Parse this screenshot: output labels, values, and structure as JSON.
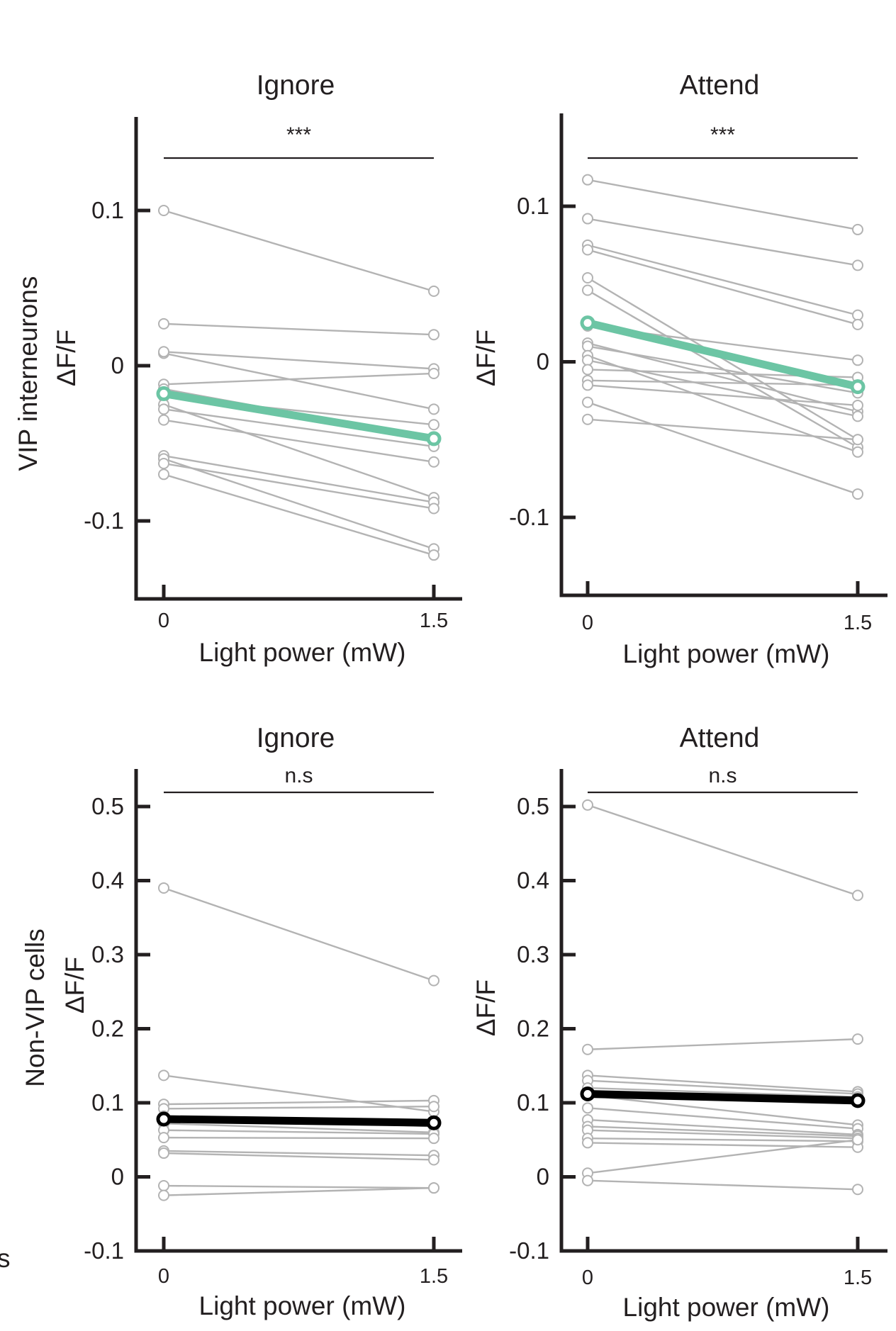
{
  "figure": {
    "row_labels": [
      {
        "text": "VIP interneurons",
        "color": "#6cc5a4"
      },
      {
        "text": "Non-VIP cells",
        "color": "#231f20"
      }
    ],
    "edge_fragment": "s"
  },
  "colors": {
    "individual": "#b3b3b3",
    "axis": "#231f20",
    "vip_mean": "#6cc5a4",
    "nonvip_mean": "#000000",
    "ignore_title": "#231f20",
    "attend_title": "#13b5d5"
  },
  "chart_data": [
    {
      "id": "vip-ignore",
      "type": "line",
      "title": "Ignore",
      "title_color": "#231f20",
      "xlabel": "Light power (mW)",
      "ylabel": "ΔF/F",
      "categories": [
        "0",
        "1.5"
      ],
      "ylim": [
        -0.15,
        0.16
      ],
      "yticks": [
        -0.1,
        0,
        0.1
      ],
      "ytick_labels": [
        "-0.1",
        "0",
        "0.1"
      ],
      "significance": "***",
      "series": [
        {
          "name": "cell 1",
          "values": [
            0.1,
            0.048
          ]
        },
        {
          "name": "cell 2",
          "values": [
            0.027,
            0.02
          ]
        },
        {
          "name": "cell 3",
          "values": [
            0.008,
            -0.028
          ]
        },
        {
          "name": "cell 4",
          "values": [
            0.009,
            -0.002
          ]
        },
        {
          "name": "cell 5",
          "values": [
            -0.012,
            -0.005
          ]
        },
        {
          "name": "cell 6",
          "values": [
            -0.015,
            -0.047
          ]
        },
        {
          "name": "cell 7",
          "values": [
            -0.02,
            -0.038
          ]
        },
        {
          "name": "cell 8",
          "values": [
            -0.025,
            -0.085
          ]
        },
        {
          "name": "cell 9",
          "values": [
            -0.028,
            -0.052
          ]
        },
        {
          "name": "cell 10",
          "values": [
            -0.035,
            -0.062
          ]
        },
        {
          "name": "cell 11",
          "values": [
            -0.058,
            -0.088
          ]
        },
        {
          "name": "cell 12",
          "values": [
            -0.06,
            -0.118
          ]
        },
        {
          "name": "cell 13",
          "values": [
            -0.063,
            -0.092
          ]
        },
        {
          "name": "cell 14",
          "values": [
            -0.07,
            -0.122
          ]
        }
      ],
      "mean": {
        "name": "mean",
        "values": [
          -0.018,
          -0.047
        ]
      }
    },
    {
      "id": "vip-attend",
      "type": "line",
      "title": "Attend",
      "title_color": "#13b5d5",
      "xlabel": "Light power (mW)",
      "ylabel": "ΔF/F",
      "categories": [
        "0",
        "1.5"
      ],
      "ylim": [
        -0.15,
        0.16
      ],
      "yticks": [
        -0.1,
        0,
        0.1
      ],
      "ytick_labels": [
        "-0.1",
        "0",
        "0.1"
      ],
      "significance": "***",
      "series": [
        {
          "name": "cell 1",
          "values": [
            0.117,
            0.085
          ]
        },
        {
          "name": "cell 2",
          "values": [
            0.092,
            0.062
          ]
        },
        {
          "name": "cell 3",
          "values": [
            0.075,
            0.03
          ]
        },
        {
          "name": "cell 4",
          "values": [
            0.072,
            0.024
          ]
        },
        {
          "name": "cell 5",
          "values": [
            0.054,
            -0.05
          ]
        },
        {
          "name": "cell 6",
          "values": [
            0.046,
            -0.055
          ]
        },
        {
          "name": "cell 7",
          "values": [
            0.023,
            0.001
          ]
        },
        {
          "name": "cell 8",
          "values": [
            0.012,
            -0.032
          ]
        },
        {
          "name": "cell 9",
          "values": [
            0.01,
            -0.02
          ]
        },
        {
          "name": "cell 10",
          "values": [
            0.004,
            -0.058
          ]
        },
        {
          "name": "cell 11",
          "values": [
            0.001,
            -0.035
          ]
        },
        {
          "name": "cell 12",
          "values": [
            -0.005,
            -0.01
          ]
        },
        {
          "name": "cell 13",
          "values": [
            -0.012,
            -0.015
          ]
        },
        {
          "name": "cell 14",
          "values": [
            -0.015,
            -0.028
          ]
        },
        {
          "name": "cell 15",
          "values": [
            -0.026,
            -0.085
          ]
        },
        {
          "name": "cell 16",
          "values": [
            -0.037,
            -0.05
          ]
        }
      ],
      "mean": {
        "name": "mean",
        "values": [
          0.025,
          -0.016
        ]
      }
    },
    {
      "id": "nonvip-ignore",
      "type": "line",
      "title": "Ignore",
      "title_color": "#231f20",
      "xlabel": "Light power (mW)",
      "ylabel": "ΔF/F",
      "categories": [
        "0",
        "1.5"
      ],
      "ylim": [
        -0.1,
        0.55
      ],
      "yticks": [
        -0.1,
        0,
        0.1,
        0.2,
        0.3,
        0.4,
        0.5
      ],
      "ytick_labels": [
        "-0.1",
        "0",
        "0.1",
        "0.2",
        "0.3",
        "0.4",
        "0.5"
      ],
      "significance": "n.s",
      "series": [
        {
          "name": "cell 1",
          "values": [
            0.39,
            0.265
          ]
        },
        {
          "name": "cell 2",
          "values": [
            0.137,
            0.088
          ]
        },
        {
          "name": "cell 3",
          "values": [
            0.098,
            0.103
          ]
        },
        {
          "name": "cell 4",
          "values": [
            0.092,
            0.095
          ]
        },
        {
          "name": "cell 5",
          "values": [
            0.082,
            0.068
          ]
        },
        {
          "name": "cell 6",
          "values": [
            0.072,
            0.06
          ]
        },
        {
          "name": "cell 7",
          "values": [
            0.063,
            0.058
          ]
        },
        {
          "name": "cell 8",
          "values": [
            0.053,
            0.052
          ]
        },
        {
          "name": "cell 9",
          "values": [
            0.035,
            0.029
          ]
        },
        {
          "name": "cell 10",
          "values": [
            0.032,
            0.023
          ]
        },
        {
          "name": "cell 11",
          "values": [
            -0.012,
            -0.015
          ]
        },
        {
          "name": "cell 12",
          "values": [
            -0.025,
            -0.015
          ]
        }
      ],
      "mean": {
        "name": "mean",
        "values": [
          0.078,
          0.073
        ]
      }
    },
    {
      "id": "nonvip-attend",
      "type": "line",
      "title": "Attend",
      "title_color": "#13b5d5",
      "xlabel": "Light power (mW)",
      "ylabel": "ΔF/F",
      "categories": [
        "0",
        "1.5"
      ],
      "ylim": [
        -0.1,
        0.55
      ],
      "yticks": [
        -0.1,
        0,
        0.1,
        0.2,
        0.3,
        0.4,
        0.5
      ],
      "ytick_labels": [
        "-0.1",
        "0",
        "0.1",
        "0.2",
        "0.3",
        "0.4",
        "0.5"
      ],
      "significance": "n.s",
      "series": [
        {
          "name": "cell 1",
          "values": [
            0.502,
            0.38
          ]
        },
        {
          "name": "cell 2",
          "values": [
            0.172,
            0.186
          ]
        },
        {
          "name": "cell 3",
          "values": [
            0.137,
            0.115
          ]
        },
        {
          "name": "cell 4",
          "values": [
            0.13,
            0.112
          ]
        },
        {
          "name": "cell 5",
          "values": [
            0.12,
            0.108
          ]
        },
        {
          "name": "cell 6",
          "values": [
            0.11,
            0.07
          ]
        },
        {
          "name": "cell 7",
          "values": [
            0.093,
            0.065
          ]
        },
        {
          "name": "cell 8",
          "values": [
            0.077,
            0.057
          ]
        },
        {
          "name": "cell 9",
          "values": [
            0.068,
            0.055
          ]
        },
        {
          "name": "cell 10",
          "values": [
            0.063,
            0.052
          ]
        },
        {
          "name": "cell 11",
          "values": [
            0.052,
            0.048
          ]
        },
        {
          "name": "cell 12",
          "values": [
            0.046,
            0.04
          ]
        },
        {
          "name": "cell 13",
          "values": [
            0.005,
            0.05
          ]
        },
        {
          "name": "cell 14",
          "values": [
            -0.005,
            -0.017
          ]
        }
      ],
      "mean": {
        "name": "mean",
        "values": [
          0.112,
          0.103
        ]
      }
    }
  ]
}
